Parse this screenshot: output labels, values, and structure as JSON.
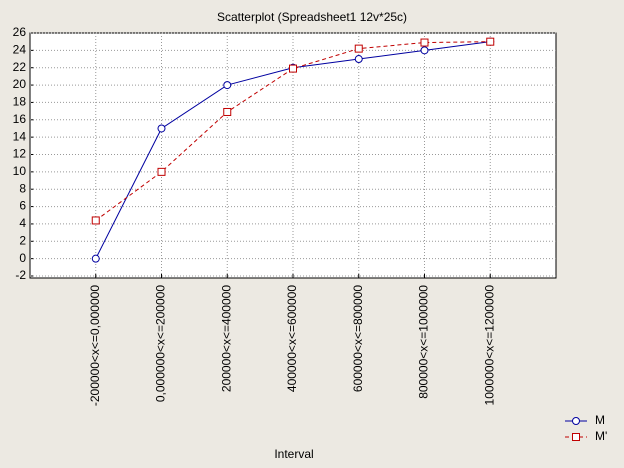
{
  "chart_data": {
    "type": "line",
    "title": "Scatterplot (Spreadsheet1 12v*25c)",
    "x_label": "Interval",
    "categories": [
      "-200000<x<=0,000000",
      "0,000000<x<=200000",
      "200000<x<=400000",
      "400000<x<=600000",
      "600000<x<=800000",
      "800000<x<=1000000",
      "1000000<x<=1200000"
    ],
    "series": [
      {
        "name": "M",
        "color": "#0000a0",
        "linestyle": "solid",
        "marker": "circle",
        "values": [
          0,
          15,
          20,
          22,
          23,
          24,
          25
        ]
      },
      {
        "name": "M'",
        "color": "#c00000",
        "linestyle": "dashed",
        "marker": "square",
        "values": [
          4.4,
          10,
          16.9,
          21.9,
          24.2,
          24.9,
          25
        ]
      }
    ],
    "ylim": [
      -2,
      26
    ],
    "yticks": [
      -2,
      0,
      2,
      4,
      6,
      8,
      10,
      12,
      14,
      16,
      18,
      20,
      22,
      24,
      26
    ],
    "grid": true,
    "legend": "bottom-right"
  }
}
